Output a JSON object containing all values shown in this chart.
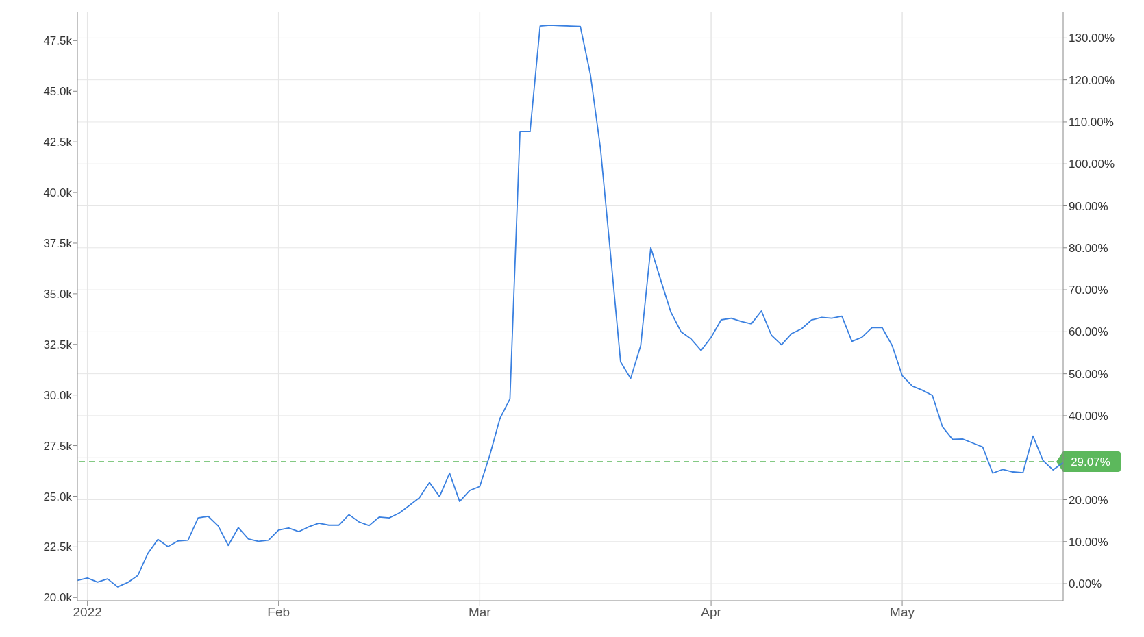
{
  "chart_data": {
    "type": "line",
    "categories": [
      null,
      "2022",
      null,
      null,
      null,
      null,
      null,
      null,
      null,
      null,
      null,
      null,
      null,
      null,
      null,
      null,
      null,
      null,
      null,
      null,
      "Feb",
      null,
      null,
      null,
      null,
      null,
      null,
      null,
      null,
      null,
      null,
      null,
      null,
      null,
      null,
      null,
      null,
      null,
      null,
      null,
      "Mar",
      null,
      null,
      null,
      null,
      null,
      null,
      null,
      null,
      null,
      null,
      null,
      null,
      null,
      null,
      null,
      null,
      null,
      null,
      null,
      null,
      null,
      null,
      "Apr",
      null,
      null,
      null,
      null,
      null,
      null,
      null,
      null,
      null,
      null,
      null,
      null,
      null,
      null,
      null,
      null,
      null,
      null,
      "May",
      null,
      null,
      null,
      null,
      null,
      null,
      null,
      null,
      null,
      null,
      null,
      null,
      null,
      null,
      null,
      null
    ],
    "values": [
      20840,
      20960,
      20760,
      20920,
      20520,
      20740,
      21080,
      22170,
      22870,
      22510,
      22790,
      22830,
      23930,
      24010,
      23530,
      22570,
      23450,
      22890,
      22770,
      22830,
      23330,
      23430,
      23250,
      23490,
      23670,
      23570,
      23570,
      24090,
      23730,
      23550,
      23970,
      23930,
      24170,
      24540,
      24920,
      25680,
      24980,
      26140,
      24740,
      25280,
      25480,
      27030,
      28830,
      29810,
      43020,
      43020,
      48220,
      48260,
      48240,
      48220,
      48200,
      45830,
      42180,
      36960,
      31640,
      30820,
      32440,
      37280,
      35660,
      34090,
      33130,
      32770,
      32200,
      32850,
      33710,
      33790,
      33630,
      33510,
      34150,
      32950,
      32480,
      33030,
      33270,
      33710,
      33830,
      33790,
      33890,
      32650,
      32850,
      33330,
      33330,
      32440,
      30960,
      30440,
      30240,
      29980,
      28430,
      27810,
      27830,
      27630,
      27430,
      26140,
      26320,
      26200,
      26160,
      27970,
      26760,
      26300,
      26660
    ],
    "color": "#3a80e0",
    "ylim": [
      19840,
      48900
    ],
    "yticks": [
      {
        "value": 20000,
        "label": "20.0k"
      },
      {
        "value": 22500,
        "label": "22.5k"
      },
      {
        "value": 25000,
        "label": "25.0k"
      },
      {
        "value": 27500,
        "label": "27.5k"
      },
      {
        "value": 30000,
        "label": "30.0k"
      },
      {
        "value": 32500,
        "label": "32.5k"
      },
      {
        "value": 35000,
        "label": "35.0k"
      },
      {
        "value": 37500,
        "label": "37.5k"
      },
      {
        "value": 40000,
        "label": "40.0k"
      },
      {
        "value": 42500,
        "label": "42.5k"
      },
      {
        "value": 45000,
        "label": "45.0k"
      },
      {
        "value": 47500,
        "label": "47.5k"
      }
    ],
    "y2lim": [
      -4.07,
      136.1
    ],
    "y2ticks": [
      {
        "value": 0,
        "label": "0.00%"
      },
      {
        "value": 10,
        "label": "10.00%"
      },
      {
        "value": 20,
        "label": "20.00%"
      },
      {
        "value": 30,
        "label": null
      },
      {
        "value": 40,
        "label": "40.00%"
      },
      {
        "value": 50,
        "label": "50.00%"
      },
      {
        "value": 60,
        "label": "60.00%"
      },
      {
        "value": 70,
        "label": "70.00%"
      },
      {
        "value": 80,
        "label": "80.00%"
      },
      {
        "value": 90,
        "label": "90.00%"
      },
      {
        "value": 100,
        "label": "100.00%"
      },
      {
        "value": 110,
        "label": "110.00%"
      },
      {
        "value": 120,
        "label": "120.00%"
      },
      {
        "value": 130,
        "label": "130.00%"
      }
    ],
    "ref_lines": [
      {
        "axis": "y2",
        "value": 29.07,
        "label": "29.07%",
        "color": "#5cb85c",
        "line_style": "dashed"
      }
    ],
    "grid": true,
    "marker": "none",
    "line_style": "solid"
  }
}
